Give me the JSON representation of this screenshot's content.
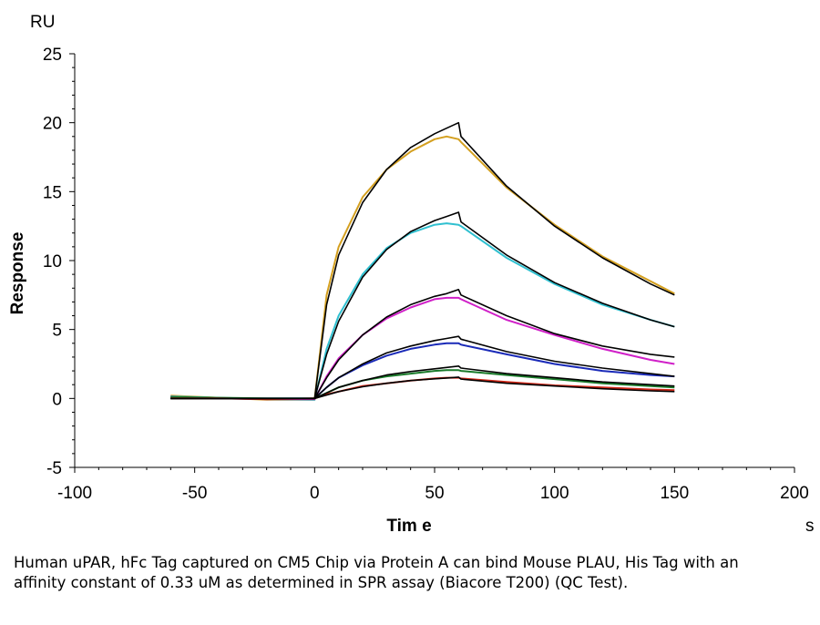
{
  "chart_data": {
    "type": "line",
    "y_unit": "RU",
    "ylabel": "Response",
    "xlabel": "Tim e",
    "x_unit": "s",
    "xlim": [
      -100,
      200
    ],
    "ylim": [
      -5,
      25
    ],
    "x_ticks": [
      -100,
      -50,
      0,
      50,
      100,
      150,
      200
    ],
    "y_ticks": [
      -5,
      0,
      5,
      10,
      15,
      20,
      25
    ],
    "grid": false,
    "legend": "none",
    "series": [
      {
        "color": "#d4a020",
        "points": [
          [
            -60,
            0.2
          ],
          [
            -40,
            0.05
          ],
          [
            -20,
            -0.1
          ],
          [
            0,
            -0.1
          ],
          [
            5,
            7.5
          ],
          [
            10,
            11.0
          ],
          [
            20,
            14.6
          ],
          [
            30,
            16.6
          ],
          [
            40,
            17.9
          ],
          [
            50,
            18.8
          ],
          [
            55,
            19.0
          ],
          [
            60,
            18.8
          ],
          [
            61,
            18.6
          ],
          [
            80,
            15.3
          ],
          [
            100,
            12.6
          ],
          [
            120,
            10.3
          ],
          [
            140,
            8.5
          ],
          [
            150,
            7.6
          ]
        ]
      },
      {
        "color": "#30c0d0",
        "points": [
          [
            -60,
            0.15
          ],
          [
            -40,
            0.05
          ],
          [
            -20,
            -0.05
          ],
          [
            0,
            -0.1
          ],
          [
            5,
            3.6
          ],
          [
            10,
            6.0
          ],
          [
            20,
            9.0
          ],
          [
            30,
            10.9
          ],
          [
            40,
            12.0
          ],
          [
            50,
            12.6
          ],
          [
            55,
            12.7
          ],
          [
            60,
            12.6
          ],
          [
            61,
            12.5
          ],
          [
            80,
            10.2
          ],
          [
            100,
            8.3
          ],
          [
            120,
            6.8
          ],
          [
            140,
            5.7
          ],
          [
            150,
            5.2
          ]
        ]
      },
      {
        "color": "#d020c8",
        "points": [
          [
            -60,
            0.1
          ],
          [
            -40,
            0.0
          ],
          [
            -20,
            -0.05
          ],
          [
            0,
            -0.05
          ],
          [
            5,
            1.6
          ],
          [
            10,
            2.9
          ],
          [
            20,
            4.6
          ],
          [
            30,
            5.8
          ],
          [
            40,
            6.6
          ],
          [
            50,
            7.2
          ],
          [
            55,
            7.3
          ],
          [
            60,
            7.3
          ],
          [
            61,
            7.2
          ],
          [
            80,
            5.7
          ],
          [
            100,
            4.6
          ],
          [
            120,
            3.6
          ],
          [
            140,
            2.8
          ],
          [
            150,
            2.5
          ]
        ]
      },
      {
        "color": "#1a2ab8",
        "points": [
          [
            -60,
            0.1
          ],
          [
            -40,
            0.0
          ],
          [
            -20,
            0.0
          ],
          [
            0,
            0.0
          ],
          [
            5,
            0.8
          ],
          [
            10,
            1.5
          ],
          [
            20,
            2.4
          ],
          [
            30,
            3.1
          ],
          [
            40,
            3.6
          ],
          [
            50,
            3.9
          ],
          [
            55,
            4.0
          ],
          [
            60,
            4.0
          ],
          [
            61,
            3.9
          ],
          [
            80,
            3.2
          ],
          [
            100,
            2.5
          ],
          [
            120,
            2.0
          ],
          [
            140,
            1.7
          ],
          [
            150,
            1.6
          ]
        ]
      },
      {
        "color": "#1a7a2a",
        "points": [
          [
            -60,
            0.1
          ],
          [
            -40,
            0.05
          ],
          [
            -20,
            0.0
          ],
          [
            0,
            0.0
          ],
          [
            5,
            0.4
          ],
          [
            10,
            0.8
          ],
          [
            20,
            1.3
          ],
          [
            30,
            1.6
          ],
          [
            40,
            1.8
          ],
          [
            50,
            2.0
          ],
          [
            55,
            2.05
          ],
          [
            60,
            2.05
          ],
          [
            61,
            2.0
          ],
          [
            80,
            1.7
          ],
          [
            100,
            1.4
          ],
          [
            120,
            1.1
          ],
          [
            140,
            0.9
          ],
          [
            150,
            0.8
          ]
        ]
      },
      {
        "color": "#d02818",
        "points": [
          [
            -60,
            0.0
          ],
          [
            -40,
            0.0
          ],
          [
            -20,
            -0.05
          ],
          [
            0,
            0.0
          ],
          [
            5,
            0.3
          ],
          [
            10,
            0.5
          ],
          [
            20,
            0.9
          ],
          [
            30,
            1.1
          ],
          [
            40,
            1.3
          ],
          [
            50,
            1.45
          ],
          [
            55,
            1.5
          ],
          [
            60,
            1.5
          ],
          [
            61,
            1.45
          ],
          [
            80,
            1.2
          ],
          [
            100,
            0.95
          ],
          [
            120,
            0.8
          ],
          [
            140,
            0.65
          ],
          [
            150,
            0.6
          ]
        ]
      }
    ],
    "fits": [
      {
        "color": "#000000",
        "points": [
          [
            -60,
            0.0
          ],
          [
            0,
            0.0
          ],
          [
            5,
            6.8
          ],
          [
            10,
            10.4
          ],
          [
            20,
            14.2
          ],
          [
            30,
            16.6
          ],
          [
            40,
            18.2
          ],
          [
            50,
            19.2
          ],
          [
            55,
            19.6
          ],
          [
            60,
            20.0
          ],
          [
            61,
            19.0
          ],
          [
            80,
            15.4
          ],
          [
            100,
            12.5
          ],
          [
            120,
            10.2
          ],
          [
            140,
            8.3
          ],
          [
            150,
            7.5
          ]
        ]
      },
      {
        "color": "#000000",
        "points": [
          [
            -60,
            0.0
          ],
          [
            0,
            0.0
          ],
          [
            5,
            3.2
          ],
          [
            10,
            5.6
          ],
          [
            20,
            8.8
          ],
          [
            30,
            10.8
          ],
          [
            40,
            12.1
          ],
          [
            50,
            12.9
          ],
          [
            55,
            13.2
          ],
          [
            60,
            13.5
          ],
          [
            61,
            12.8
          ],
          [
            80,
            10.4
          ],
          [
            100,
            8.4
          ],
          [
            120,
            6.9
          ],
          [
            140,
            5.7
          ],
          [
            150,
            5.2
          ]
        ]
      },
      {
        "color": "#000000",
        "points": [
          [
            -60,
            0.0
          ],
          [
            0,
            0.0
          ],
          [
            5,
            1.5
          ],
          [
            10,
            2.8
          ],
          [
            20,
            4.6
          ],
          [
            30,
            5.9
          ],
          [
            40,
            6.8
          ],
          [
            50,
            7.4
          ],
          [
            55,
            7.6
          ],
          [
            60,
            7.9
          ],
          [
            61,
            7.5
          ],
          [
            80,
            6.0
          ],
          [
            100,
            4.7
          ],
          [
            120,
            3.8
          ],
          [
            140,
            3.2
          ],
          [
            150,
            3.0
          ]
        ]
      },
      {
        "color": "#000000",
        "points": [
          [
            -60,
            0.0
          ],
          [
            0,
            0.0
          ],
          [
            5,
            0.8
          ],
          [
            10,
            1.5
          ],
          [
            20,
            2.5
          ],
          [
            30,
            3.3
          ],
          [
            40,
            3.8
          ],
          [
            50,
            4.2
          ],
          [
            55,
            4.35
          ],
          [
            60,
            4.5
          ],
          [
            61,
            4.3
          ],
          [
            80,
            3.4
          ],
          [
            100,
            2.7
          ],
          [
            120,
            2.2
          ],
          [
            140,
            1.8
          ],
          [
            150,
            1.6
          ]
        ]
      },
      {
        "color": "#000000",
        "points": [
          [
            -60,
            0.0
          ],
          [
            0,
            0.0
          ],
          [
            5,
            0.4
          ],
          [
            10,
            0.8
          ],
          [
            20,
            1.3
          ],
          [
            30,
            1.7
          ],
          [
            40,
            1.95
          ],
          [
            50,
            2.15
          ],
          [
            55,
            2.25
          ],
          [
            60,
            2.35
          ],
          [
            61,
            2.2
          ],
          [
            80,
            1.8
          ],
          [
            100,
            1.5
          ],
          [
            120,
            1.2
          ],
          [
            140,
            1.0
          ],
          [
            150,
            0.9
          ]
        ]
      },
      {
        "color": "#000000",
        "points": [
          [
            -60,
            0.0
          ],
          [
            0,
            0.0
          ],
          [
            5,
            0.25
          ],
          [
            10,
            0.5
          ],
          [
            20,
            0.85
          ],
          [
            30,
            1.1
          ],
          [
            40,
            1.3
          ],
          [
            50,
            1.42
          ],
          [
            55,
            1.48
          ],
          [
            60,
            1.55
          ],
          [
            61,
            1.4
          ],
          [
            80,
            1.1
          ],
          [
            100,
            0.9
          ],
          [
            120,
            0.7
          ],
          [
            140,
            0.55
          ],
          [
            150,
            0.5
          ]
        ]
      }
    ]
  },
  "caption": "Human uPAR, hFc Tag captured on CM5 Chip via Protein A can bind Mouse PLAU, His Tag with an affinity constant of 0.33 uM as determined in SPR assay (Biacore T200) (QC Test)."
}
